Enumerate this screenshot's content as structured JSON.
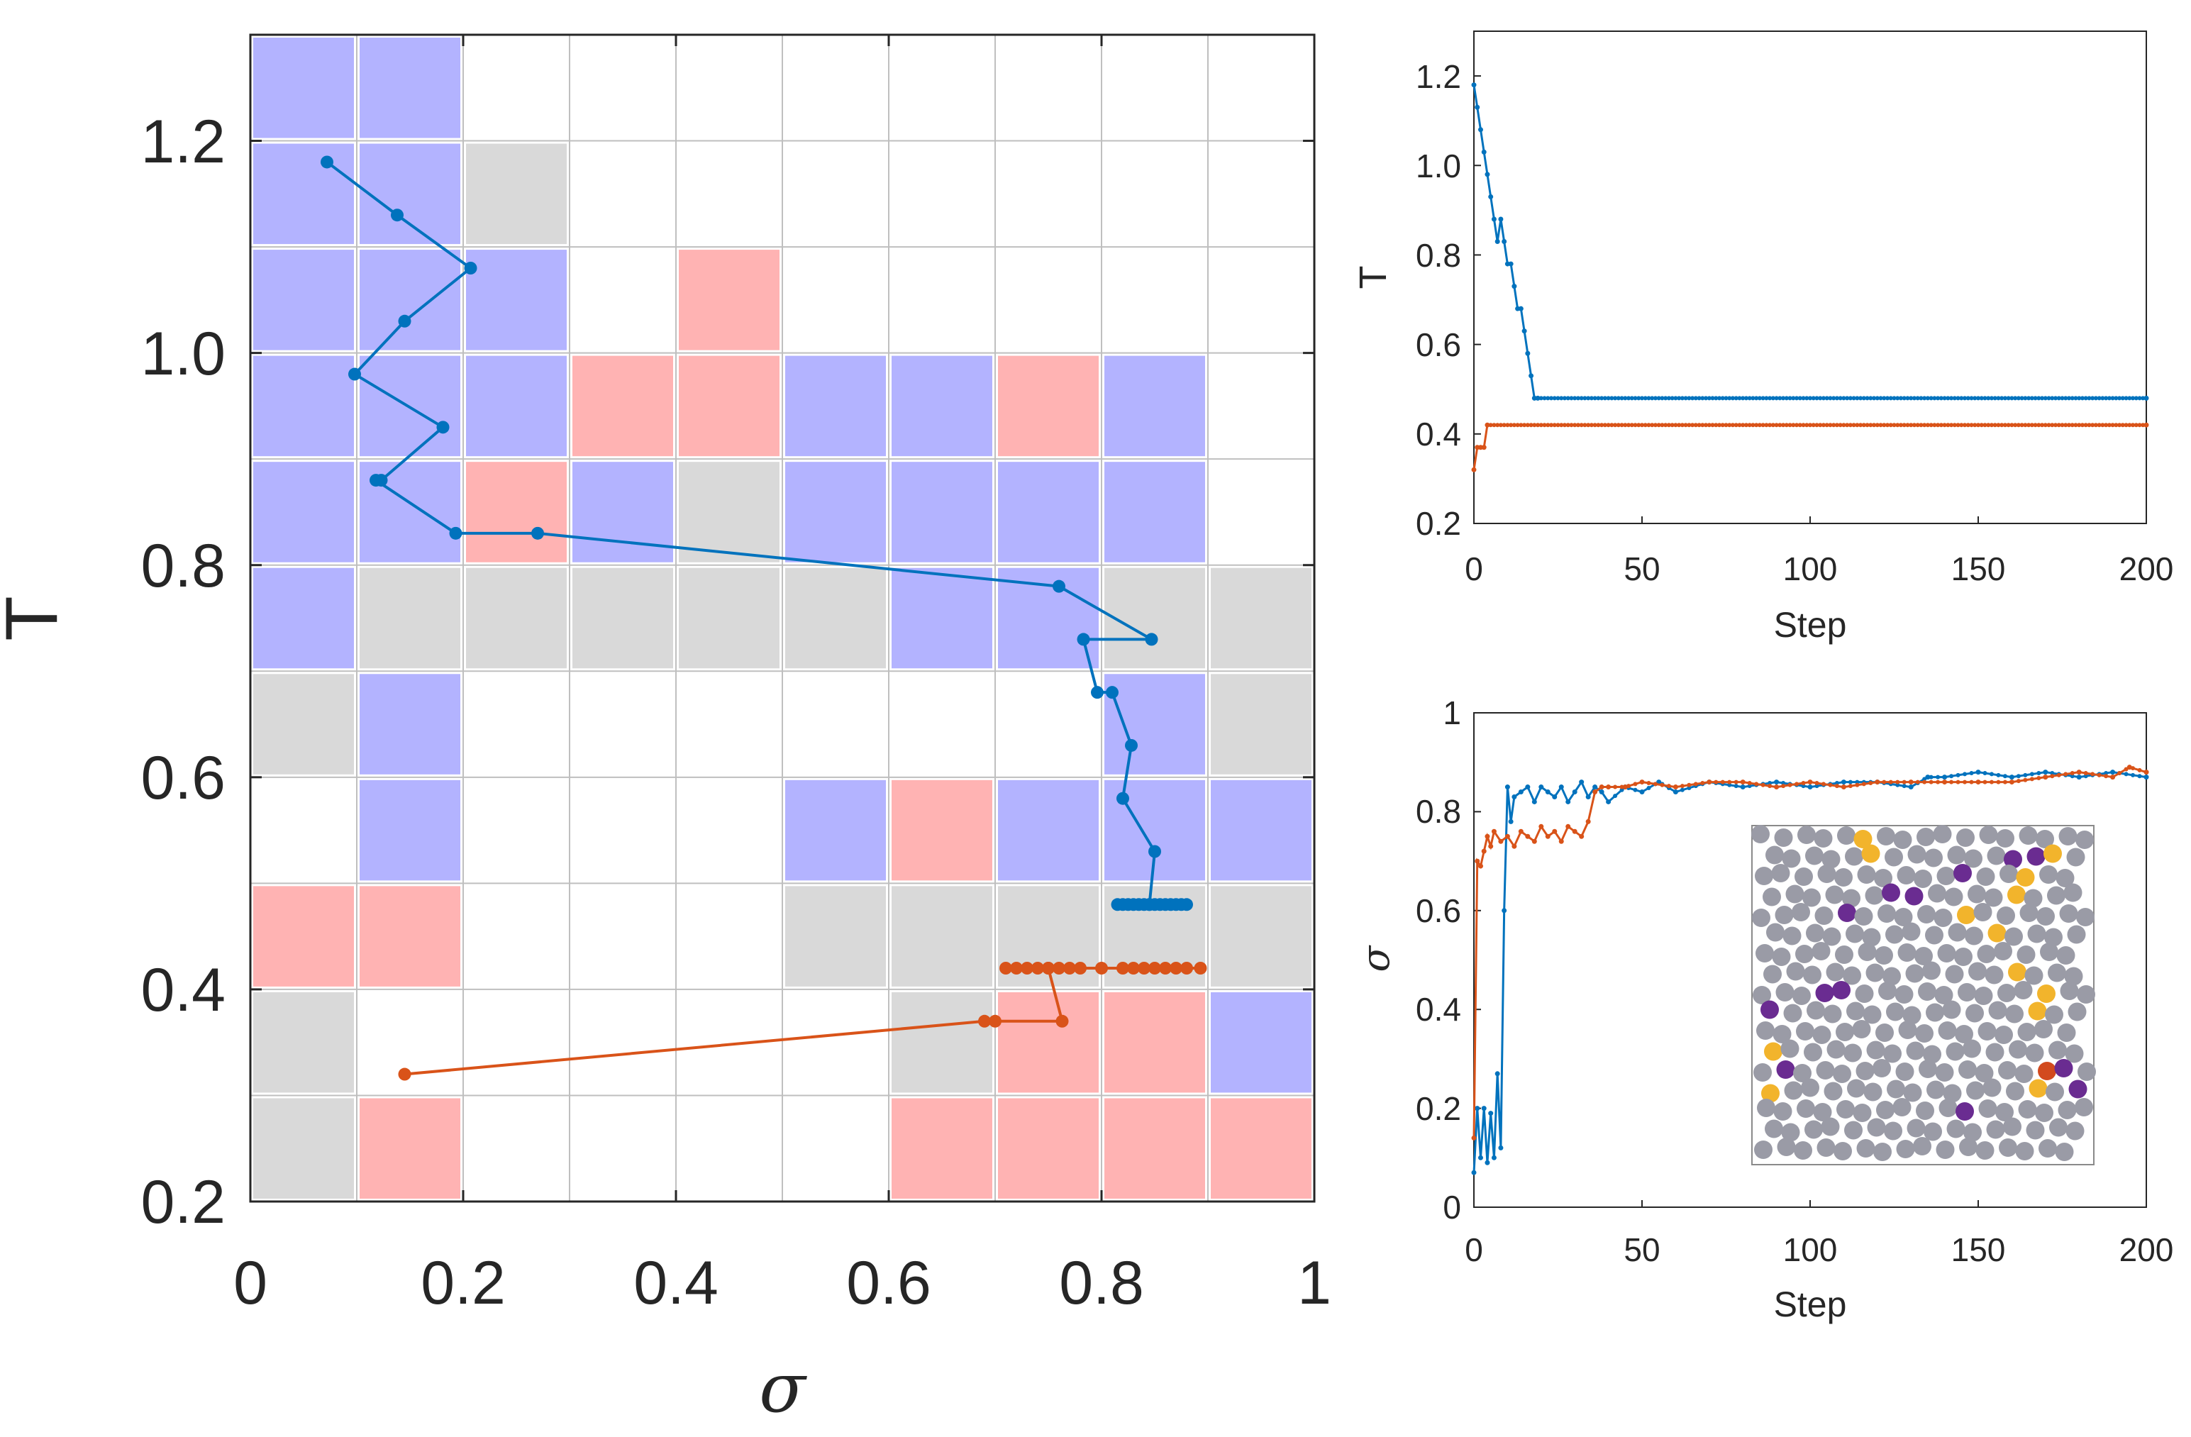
{
  "colors": {
    "blue_line": "#0072BD",
    "orange_line": "#D95319",
    "cell_blue": "#b3b3ff",
    "cell_red": "#ffb3b3",
    "cell_gray": "#d9d9d9",
    "grid": "#bfbfbf",
    "axis": "#262626",
    "particle_gray": "#9a9ba6",
    "particle_yellow": "#f2b42c",
    "particle_purple": "#6a2c91",
    "particle_red": "#d24a1e"
  },
  "chart_data": [
    {
      "id": "main",
      "type": "heatmap",
      "title": "",
      "xlabel": "σ",
      "ylabel": "T",
      "xlim": [
        0,
        1
      ],
      "ylim": [
        0.2,
        1.3
      ],
      "x_ticks": [
        0,
        0.2,
        0.4,
        0.6,
        0.8,
        1
      ],
      "x_tick_labels": [
        "0",
        "0.2",
        "0.4",
        "0.6",
        "0.8",
        "1"
      ],
      "y_ticks": [
        0.2,
        0.4,
        0.6,
        0.8,
        1.0,
        1.2
      ],
      "y_tick_labels": [
        "0.2",
        "0.4",
        "0.6",
        "0.8",
        "1.0",
        "1.2"
      ],
      "grid": true,
      "cell_dx": 0.1,
      "cell_dy": 0.1,
      "cell_key": "B = blue, R = red, G = gray, . = empty; rows listed from T=1.2-1.3 (top) to T=0.2-0.3 (bottom), columns σ=0-0.1 to σ=0.9-1.0",
      "cells": [
        "BB........",
        "BBG.......",
        "BBB.R.....",
        "BBBRRBBRB.",
        "BBRBGBBBB.",
        "BGGGGGBBGG",
        "GB......BG",
        ".B...BRBBB",
        "RR...GGGGG",
        "G.....GRRB",
        "GR....RRRR"
      ],
      "series": [
        {
          "name": "blue trajectory",
          "color": "#0072BD",
          "points": [
            [
              0.072,
              1.18
            ],
            [
              0.138,
              1.13
            ],
            [
              0.207,
              1.08
            ],
            [
              0.145,
              1.03
            ],
            [
              0.098,
              0.98
            ],
            [
              0.181,
              0.93
            ],
            [
              0.123,
              0.88
            ],
            [
              0.118,
              0.88
            ],
            [
              0.193,
              0.83
            ],
            [
              0.27,
              0.83
            ],
            [
              0.76,
              0.78
            ],
            [
              0.847,
              0.73
            ],
            [
              0.783,
              0.73
            ],
            [
              0.796,
              0.68
            ],
            [
              0.81,
              0.68
            ],
            [
              0.828,
              0.63
            ],
            [
              0.82,
              0.58
            ],
            [
              0.85,
              0.53
            ],
            [
              0.845,
              0.48
            ],
            [
              0.815,
              0.48
            ],
            [
              0.82,
              0.48
            ],
            [
              0.825,
              0.48
            ],
            [
              0.83,
              0.48
            ],
            [
              0.835,
              0.48
            ],
            [
              0.84,
              0.48
            ],
            [
              0.845,
              0.48
            ],
            [
              0.85,
              0.48
            ],
            [
              0.855,
              0.48
            ],
            [
              0.86,
              0.48
            ],
            [
              0.865,
              0.48
            ],
            [
              0.87,
              0.48
            ],
            [
              0.875,
              0.48
            ],
            [
              0.88,
              0.48
            ]
          ]
        },
        {
          "name": "orange trajectory",
          "color": "#D95319",
          "points": [
            [
              0.145,
              0.32
            ],
            [
              0.69,
              0.37
            ],
            [
              0.7,
              0.37
            ],
            [
              0.763,
              0.37
            ],
            [
              0.75,
              0.42
            ],
            [
              0.71,
              0.42
            ],
            [
              0.72,
              0.42
            ],
            [
              0.73,
              0.42
            ],
            [
              0.74,
              0.42
            ],
            [
              0.75,
              0.42
            ],
            [
              0.76,
              0.42
            ],
            [
              0.77,
              0.42
            ],
            [
              0.78,
              0.42
            ],
            [
              0.8,
              0.42
            ],
            [
              0.85,
              0.42
            ],
            [
              0.82,
              0.42
            ],
            [
              0.83,
              0.42
            ],
            [
              0.84,
              0.42
            ],
            [
              0.86,
              0.42
            ],
            [
              0.87,
              0.42
            ],
            [
              0.88,
              0.42
            ],
            [
              0.893,
              0.42
            ]
          ]
        }
      ]
    },
    {
      "id": "top_right",
      "type": "line",
      "title": "",
      "xlabel": "Step",
      "ylabel": "T",
      "xlim": [
        0,
        200
      ],
      "ylim": [
        0.2,
        1.3
      ],
      "x_ticks": [
        0,
        50,
        100,
        150,
        200
      ],
      "x_tick_labels": [
        "0",
        "50",
        "100",
        "150",
        "200"
      ],
      "y_ticks": [
        0.2,
        0.4,
        0.6,
        0.8,
        1.0,
        1.2
      ],
      "y_tick_labels": [
        "0.2",
        "0.4",
        "0.6",
        "0.8",
        "1.0",
        "1.2"
      ],
      "grid": false,
      "series": [
        {
          "name": "blue",
          "color": "#0072BD",
          "x": [
            0,
            1,
            2,
            3,
            4,
            5,
            6,
            7,
            8,
            9,
            10,
            11,
            12,
            13,
            14,
            15,
            16,
            17,
            18,
            19,
            200
          ],
          "y": [
            1.18,
            1.13,
            1.08,
            1.03,
            0.98,
            0.93,
            0.88,
            0.83,
            0.88,
            0.83,
            0.78,
            0.78,
            0.73,
            0.68,
            0.68,
            0.63,
            0.58,
            0.53,
            0.48,
            0.48,
            0.48
          ]
        },
        {
          "name": "orange",
          "color": "#D95319",
          "x": [
            0,
            1,
            2,
            3,
            4,
            200
          ],
          "y": [
            0.32,
            0.37,
            0.37,
            0.37,
            0.42,
            0.42
          ]
        }
      ]
    },
    {
      "id": "bottom_right",
      "type": "line",
      "title": "",
      "xlabel": "Step",
      "ylabel": "σ",
      "xlim": [
        0,
        200
      ],
      "ylim": [
        0,
        1
      ],
      "x_ticks": [
        0,
        50,
        100,
        150,
        200
      ],
      "x_tick_labels": [
        "0",
        "50",
        "100",
        "150",
        "200"
      ],
      "y_ticks": [
        0,
        0.2,
        0.4,
        0.6,
        0.8,
        1
      ],
      "y_tick_labels": [
        "0",
        "0.2",
        "0.4",
        "0.6",
        "0.8",
        "1"
      ],
      "grid": false,
      "series": [
        {
          "name": "blue",
          "color": "#0072BD",
          "x": [
            0,
            1,
            2,
            3,
            4,
            5,
            6,
            7,
            8,
            9,
            10,
            11,
            12,
            14,
            16,
            18,
            20,
            22,
            24,
            26,
            28,
            30,
            32,
            34,
            36,
            38,
            40,
            45,
            50,
            55,
            60,
            70,
            80,
            90,
            100,
            110,
            120,
            130,
            135,
            140,
            150,
            160,
            170,
            180,
            190,
            200
          ],
          "y": [
            0.07,
            0.2,
            0.1,
            0.2,
            0.09,
            0.19,
            0.1,
            0.27,
            0.12,
            0.6,
            0.85,
            0.78,
            0.83,
            0.84,
            0.85,
            0.82,
            0.85,
            0.84,
            0.83,
            0.85,
            0.82,
            0.84,
            0.86,
            0.83,
            0.85,
            0.84,
            0.82,
            0.85,
            0.84,
            0.86,
            0.84,
            0.86,
            0.85,
            0.86,
            0.85,
            0.86,
            0.86,
            0.85,
            0.87,
            0.87,
            0.88,
            0.87,
            0.88,
            0.87,
            0.88,
            0.87
          ]
        },
        {
          "name": "orange",
          "color": "#D95319",
          "x": [
            0,
            1,
            2,
            3,
            4,
            5,
            6,
            8,
            10,
            12,
            14,
            16,
            18,
            20,
            22,
            24,
            26,
            28,
            30,
            32,
            34,
            36,
            38,
            40,
            45,
            50,
            60,
            70,
            80,
            90,
            100,
            110,
            120,
            130,
            140,
            150,
            160,
            170,
            180,
            190,
            195,
            200
          ],
          "y": [
            0.14,
            0.7,
            0.69,
            0.72,
            0.75,
            0.73,
            0.76,
            0.74,
            0.75,
            0.73,
            0.76,
            0.75,
            0.74,
            0.77,
            0.75,
            0.76,
            0.74,
            0.77,
            0.76,
            0.75,
            0.78,
            0.84,
            0.85,
            0.85,
            0.85,
            0.86,
            0.85,
            0.86,
            0.86,
            0.85,
            0.86,
            0.85,
            0.86,
            0.86,
            0.86,
            0.86,
            0.86,
            0.87,
            0.88,
            0.87,
            0.89,
            0.88
          ]
        }
      ]
    }
  ]
}
